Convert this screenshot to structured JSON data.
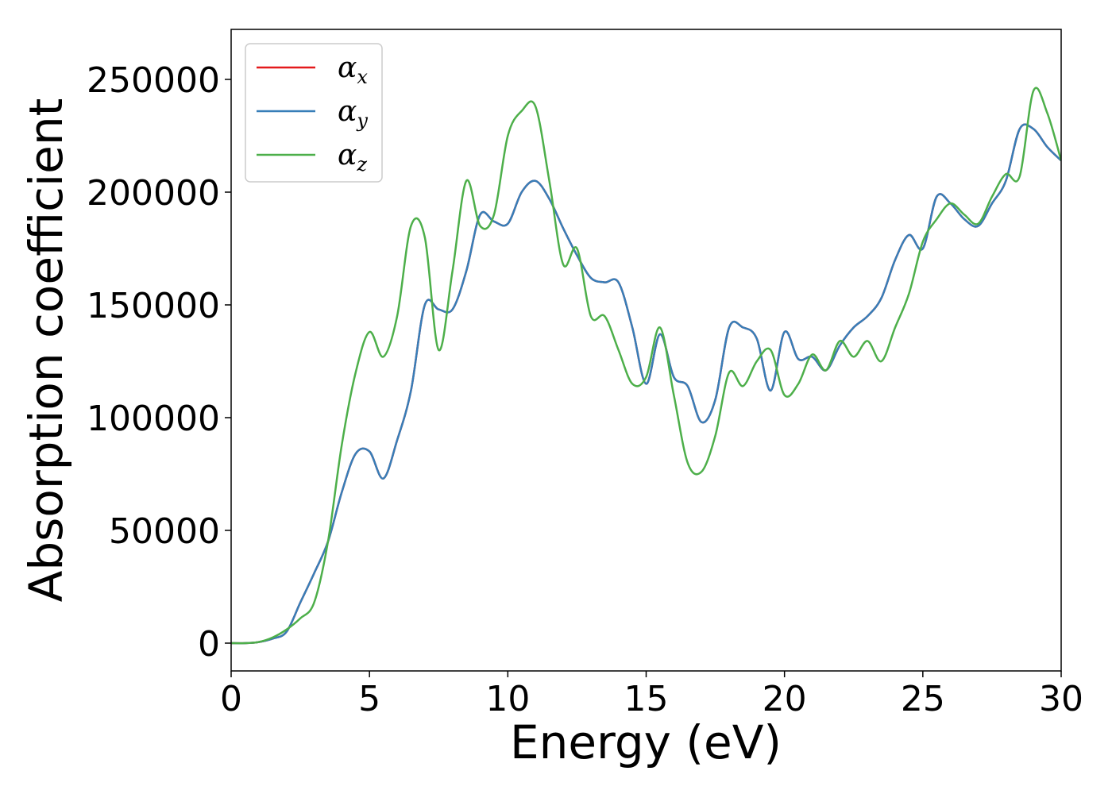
{
  "chart_data": {
    "type": "line",
    "xlabel": "Energy (eV)",
    "ylabel": "Absorption coefficient",
    "x": [
      0,
      0.5,
      1,
      1.5,
      2,
      2.5,
      3,
      3.5,
      4,
      4.5,
      5,
      5.5,
      6,
      6.5,
      7,
      7.5,
      8,
      8.5,
      9,
      9.5,
      10,
      10.5,
      11,
      11.5,
      12,
      12.5,
      13,
      13.5,
      14,
      14.5,
      15,
      15.5,
      16,
      16.5,
      17,
      17.5,
      18,
      18.5,
      19,
      19.5,
      20,
      20.5,
      21,
      21.5,
      22,
      22.5,
      23,
      23.5,
      24,
      24.5,
      25,
      25.5,
      26,
      26.5,
      27,
      27.5,
      28,
      28.5,
      29,
      29.5,
      30
    ],
    "series": [
      {
        "name": "αx",
        "color": "#e41a1c",
        "values": [
          0,
          0,
          500,
          2000,
          5000,
          18000,
          31000,
          45000,
          67000,
          84000,
          85000,
          73000,
          90000,
          112000,
          150000,
          148000,
          148000,
          165000,
          190000,
          187000,
          186000,
          200000,
          205000,
          197000,
          184000,
          172000,
          162000,
          160000,
          160000,
          140000,
          115000,
          137000,
          118000,
          114000,
          98000,
          108000,
          140000,
          140000,
          135000,
          112000,
          138000,
          126000,
          127000,
          121000,
          132000,
          140000,
          145000,
          153000,
          170000,
          181000,
          175000,
          198000,
          195000,
          188000,
          185000,
          195000,
          205000,
          228000,
          228000,
          220000,
          214000
        ]
      },
      {
        "name": "αy",
        "color": "#377eb8",
        "values": [
          0,
          0,
          500,
          2000,
          5000,
          18000,
          31000,
          45000,
          67000,
          84000,
          85000,
          73000,
          90000,
          112000,
          150000,
          148000,
          148000,
          165000,
          190000,
          187000,
          186000,
          200000,
          205000,
          197000,
          184000,
          172000,
          162000,
          160000,
          160000,
          140000,
          115000,
          137000,
          118000,
          114000,
          98000,
          108000,
          140000,
          140000,
          135000,
          112000,
          138000,
          126000,
          127000,
          121000,
          132000,
          140000,
          145000,
          153000,
          170000,
          181000,
          175000,
          198000,
          195000,
          188000,
          185000,
          195000,
          205000,
          228000,
          228000,
          220000,
          214000
        ]
      },
      {
        "name": "αz",
        "color": "#4daf4a",
        "values": [
          0,
          0,
          500,
          2500,
          6000,
          11000,
          18000,
          45000,
          88000,
          120000,
          138000,
          127000,
          145000,
          185000,
          180000,
          130000,
          165000,
          205000,
          185000,
          190000,
          225000,
          236000,
          238000,
          205000,
          168000,
          175000,
          145000,
          145000,
          130000,
          115000,
          118000,
          140000,
          110000,
          80000,
          76000,
          92000,
          120000,
          114000,
          125000,
          130000,
          110000,
          115000,
          128000,
          121000,
          134000,
          127000,
          134000,
          125000,
          140000,
          155000,
          178000,
          188000,
          195000,
          190000,
          186000,
          198000,
          208000,
          207000,
          245000,
          235000,
          214000
        ]
      }
    ],
    "xlim": [
      0,
      30
    ],
    "ylim": [
      -12324,
      272183
    ],
    "xticks": [
      0,
      5,
      10,
      15,
      20,
      25,
      30
    ],
    "yticks": [
      0,
      50000,
      100000,
      150000,
      200000,
      250000
    ],
    "legend": "upper left"
  }
}
